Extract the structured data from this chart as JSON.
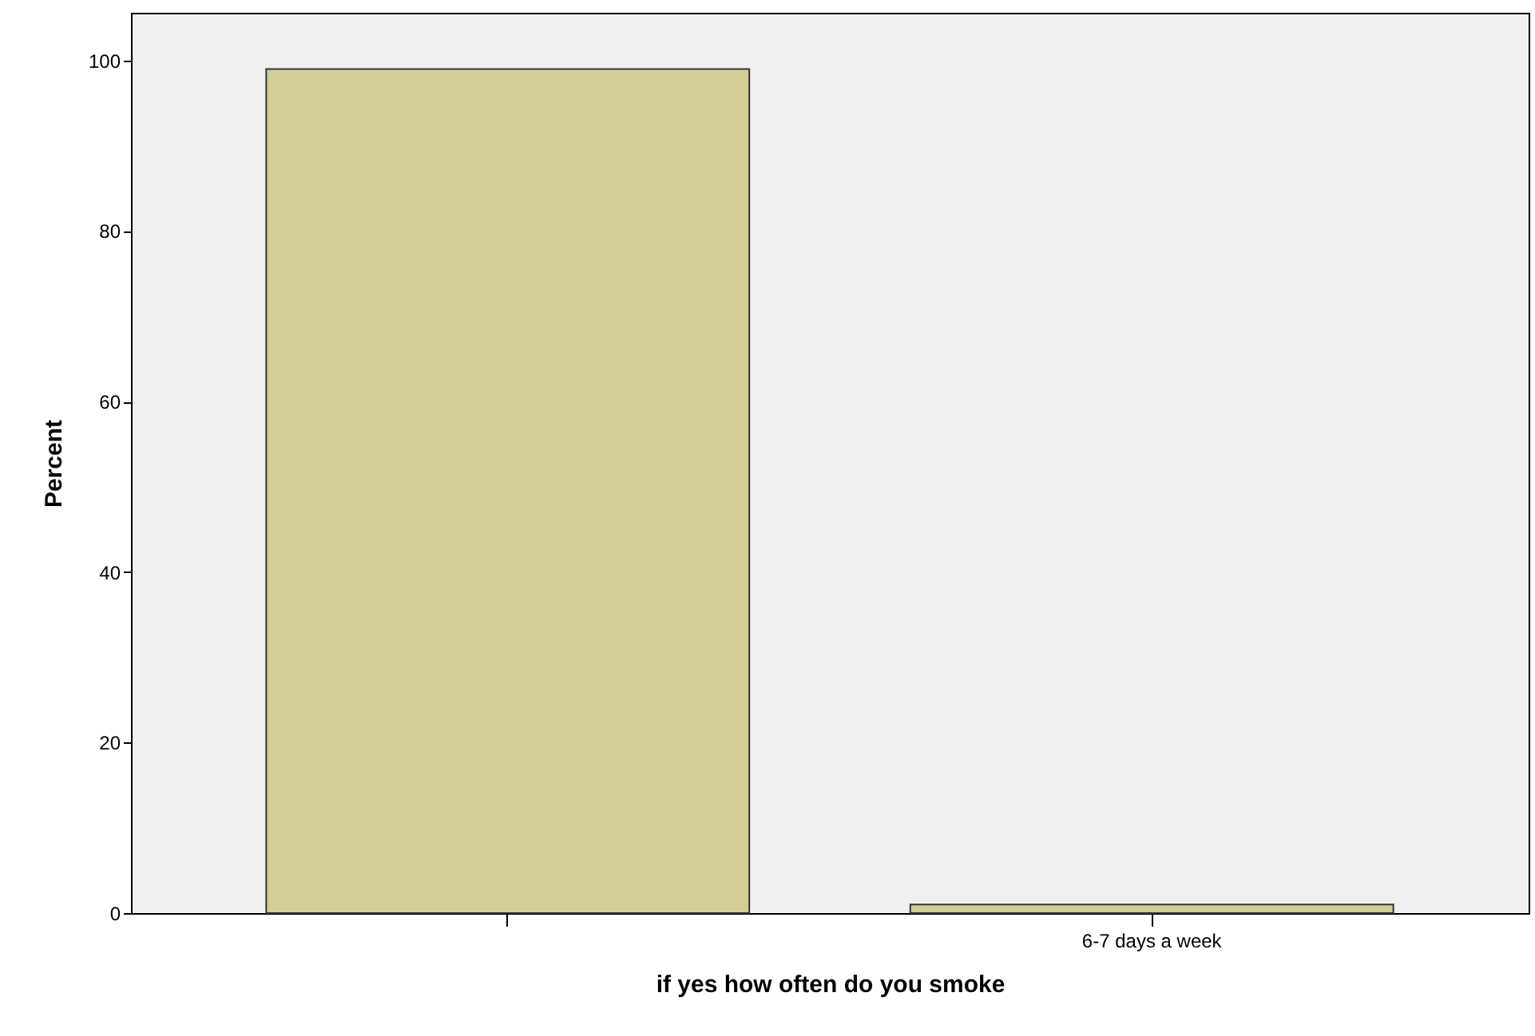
{
  "chart_data": {
    "type": "bar",
    "xlabel": "if yes how often do you smoke",
    "ylabel": "Percent",
    "categories": [
      null,
      "6-7 days a week"
    ],
    "values": [
      99,
      1
    ],
    "color": "#d3ce98",
    "ylim": [
      0,
      105.6
    ],
    "yticks": [
      0,
      20,
      40,
      60,
      80,
      100
    ],
    "grid": false
  }
}
